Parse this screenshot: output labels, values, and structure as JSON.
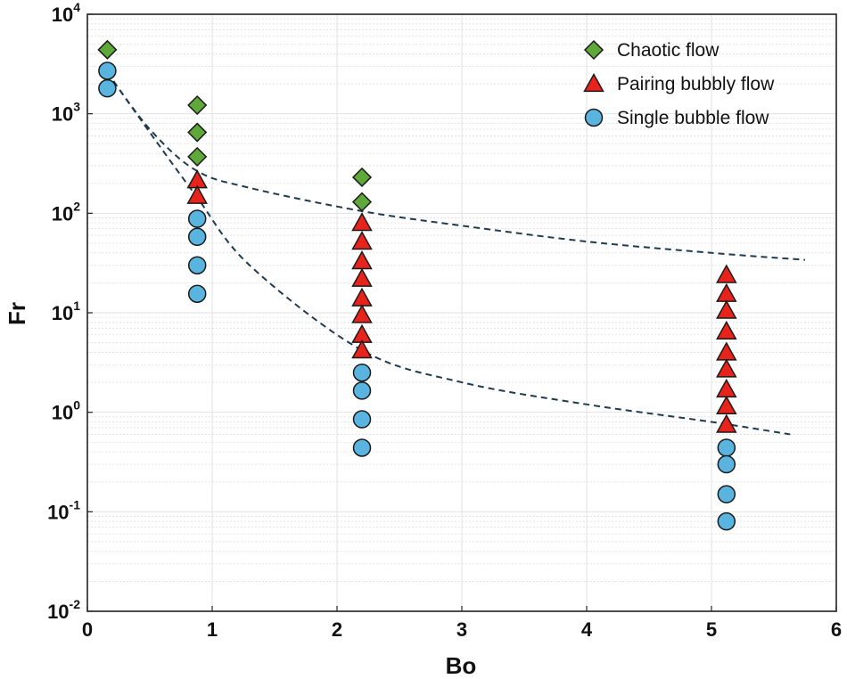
{
  "chart_data": {
    "type": "scatter",
    "xlabel": "Bo",
    "ylabel": "Fr",
    "xlim": [
      0,
      6
    ],
    "ylim": [
      0.01,
      10000
    ],
    "yscale": "log",
    "grid": true,
    "minor_grid": true,
    "x_ticks": [
      "0",
      "1",
      "2",
      "3",
      "4",
      "5",
      "6"
    ],
    "y_ticks": [
      {
        "base": "10",
        "exp": "-2"
      },
      {
        "base": "10",
        "exp": "-1"
      },
      {
        "base": "10",
        "exp": "0"
      },
      {
        "base": "10",
        "exp": "1"
      },
      {
        "base": "10",
        "exp": "2"
      },
      {
        "base": "10",
        "exp": "3"
      },
      {
        "base": "10",
        "exp": "4"
      }
    ],
    "legend_position": "top-right",
    "series": [
      {
        "name": "Chaotic flow",
        "marker": "diamond",
        "color": "#5fa83a",
        "points": [
          [
            0.16,
            4400
          ],
          [
            0.88,
            1220
          ],
          [
            0.88,
            650
          ],
          [
            0.88,
            370
          ],
          [
            2.2,
            230
          ],
          [
            2.2,
            130
          ]
        ]
      },
      {
        "name": "Pairing bubbly flow",
        "marker": "triangle",
        "color": "#e8231c",
        "points": [
          [
            0.88,
            215
          ],
          [
            0.88,
            150
          ],
          [
            2.2,
            80
          ],
          [
            2.2,
            52
          ],
          [
            2.2,
            33
          ],
          [
            2.2,
            22
          ],
          [
            2.2,
            14
          ],
          [
            2.2,
            9.5
          ],
          [
            2.2,
            6
          ],
          [
            2.2,
            4.2
          ],
          [
            5.12,
            24
          ],
          [
            5.12,
            15.5
          ],
          [
            5.12,
            10.5
          ],
          [
            5.12,
            6.5
          ],
          [
            5.12,
            4
          ],
          [
            5.12,
            2.7
          ],
          [
            5.12,
            1.7
          ],
          [
            5.12,
            1.15
          ],
          [
            5.12,
            0.75
          ]
        ]
      },
      {
        "name": "Single bubble flow",
        "marker": "circle",
        "color": "#5ab4e0",
        "points": [
          [
            0.16,
            2700
          ],
          [
            0.16,
            1800
          ],
          [
            0.88,
            88
          ],
          [
            0.88,
            58
          ],
          [
            0.88,
            30
          ],
          [
            0.88,
            15.5
          ],
          [
            2.2,
            2.5
          ],
          [
            2.2,
            1.65
          ],
          [
            2.2,
            0.85
          ],
          [
            2.2,
            0.44
          ],
          [
            5.12,
            0.44
          ],
          [
            5.12,
            0.3
          ],
          [
            5.12,
            0.15
          ],
          [
            5.12,
            0.08
          ]
        ]
      }
    ],
    "boundary_lines": [
      {
        "style": "dashed",
        "color": "#1f3b4d",
        "x": [
          0.16,
          0.5,
          0.87,
          1.3,
          2.2,
          3,
          4,
          5,
          5.75
        ],
        "y": [
          2600,
          700,
          270,
          180,
          105,
          75,
          52,
          40,
          34
        ]
      },
      {
        "style": "dashed",
        "color": "#1f3b4d",
        "x": [
          0.16,
          0.5,
          0.87,
          1.3,
          2.2,
          3,
          4,
          5,
          5.63
        ],
        "y": [
          2600,
          650,
          150,
          30,
          4.2,
          2,
          1.2,
          0.8,
          0.6
        ]
      }
    ]
  }
}
